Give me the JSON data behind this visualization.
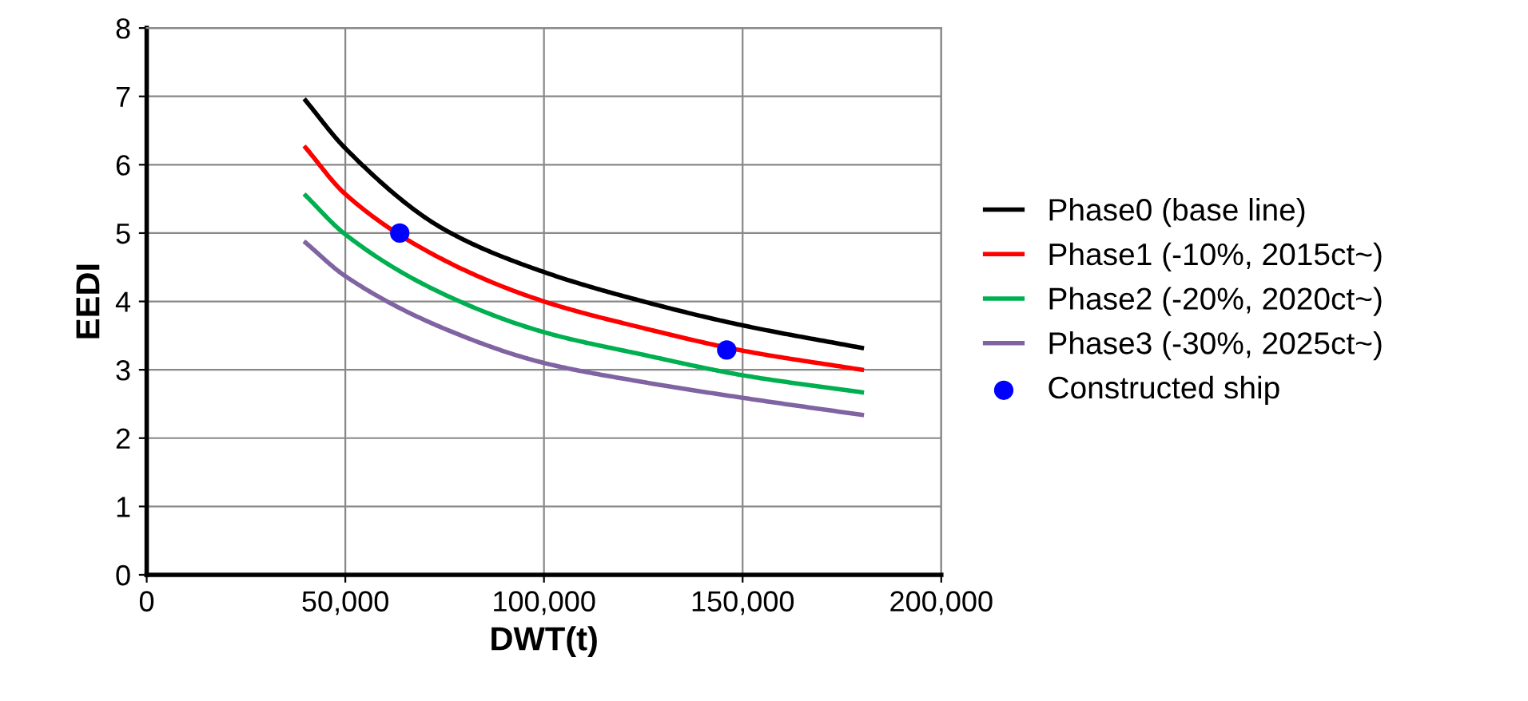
{
  "chart_data": {
    "type": "line",
    "xlabel": "DWT(t)",
    "ylabel": "EEDI",
    "xlim": [
      0,
      200000
    ],
    "xticks": [
      {
        "value": 0,
        "label": "0"
      },
      {
        "value": 50000,
        "label": "50,000"
      },
      {
        "value": 100000,
        "label": "100,000"
      },
      {
        "value": 150000,
        "label": "150,000"
      },
      {
        "value": 200000,
        "label": "200,000"
      }
    ],
    "ylim": [
      0,
      8
    ],
    "yticks": [
      0,
      1,
      2,
      3,
      4,
      5,
      6,
      7,
      8
    ],
    "grid": true,
    "legend": "right",
    "marker": "none",
    "line_style": "solid",
    "series": [
      {
        "name": "Phase0 (base line)",
        "color": "#000000",
        "x": [
          40000,
          50000,
          75000,
          100000,
          125000,
          150000,
          180000
        ],
        "values": [
          6.94,
          6.24,
          5.05,
          4.43,
          4.0,
          3.65,
          3.32
        ]
      },
      {
        "name": "Phase1 (-10%, 2015ct~)",
        "color": "#ff0000",
        "x": [
          40000,
          50000,
          75000,
          100000,
          125000,
          150000,
          180000
        ],
        "values": [
          6.25,
          5.57,
          4.6,
          4.0,
          3.61,
          3.28,
          3.0
        ]
      },
      {
        "name": "Phase2 (-20%, 2020ct~)",
        "color": "#00b050",
        "x": [
          40000,
          50000,
          75000,
          100000,
          125000,
          150000,
          180000
        ],
        "values": [
          5.55,
          4.98,
          4.1,
          3.55,
          3.22,
          2.92,
          2.67
        ]
      },
      {
        "name": "Phase3 (-30%, 2025ct~)",
        "color": "#8064a2",
        "x": [
          40000,
          50000,
          75000,
          100000,
          125000,
          150000,
          180000
        ],
        "values": [
          4.86,
          4.37,
          3.6,
          3.1,
          2.82,
          2.59,
          2.34
        ]
      },
      {
        "name": "Constructed ship",
        "type": "scatter",
        "marker": "circle",
        "color": "#0000ff",
        "x": [
          63700,
          146000
        ],
        "values": [
          5.0,
          3.29
        ]
      }
    ]
  }
}
